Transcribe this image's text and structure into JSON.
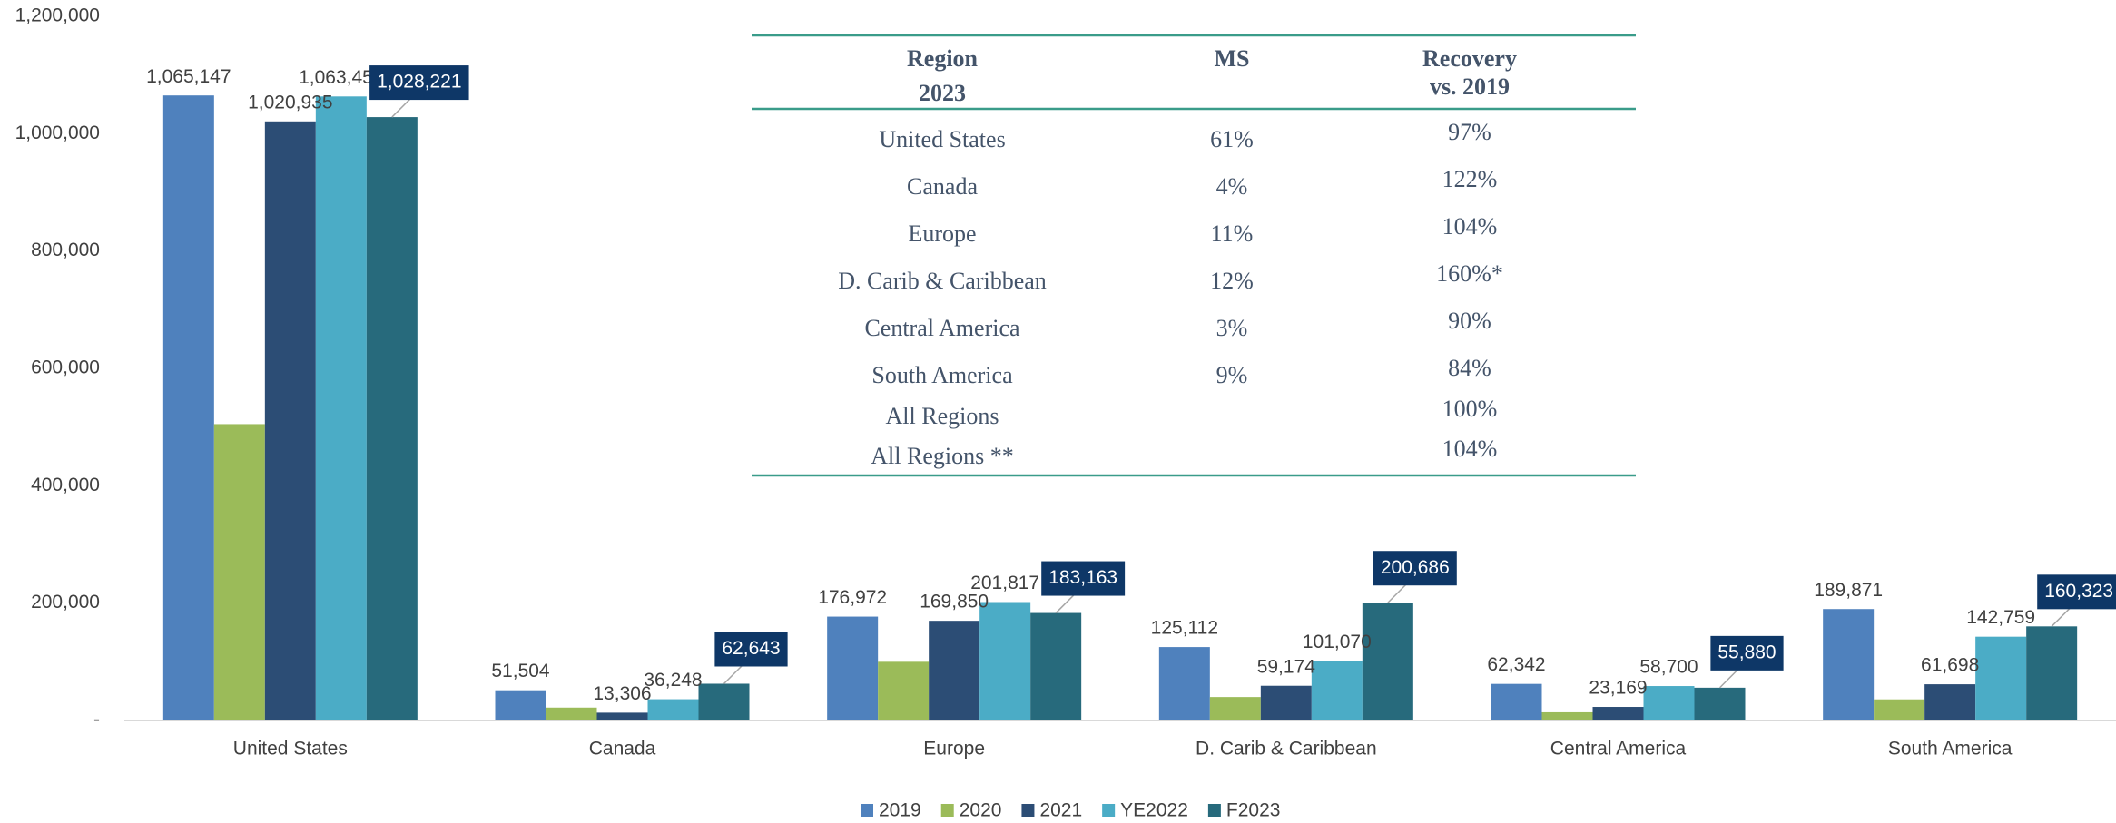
{
  "chart_data": {
    "type": "bar",
    "categories": [
      "United States",
      "Canada",
      "Europe",
      "D. Carib & Caribbean",
      "Central America",
      "South America"
    ],
    "series": [
      {
        "name": "2019",
        "color": "#4f81bd",
        "values": [
          1065147,
          51504,
          176972,
          125112,
          62342,
          189871
        ],
        "value_labels": [
          "1,065,147",
          "51,504",
          "176,972",
          "125,112",
          "62,342",
          "189,871"
        ]
      },
      {
        "name": "2020",
        "color": "#9bbb59",
        "values": [
          505000,
          22000,
          100000,
          40000,
          14000,
          36000
        ]
      },
      {
        "name": "2021",
        "color": "#2c4d75",
        "values": [
          1020935,
          13306,
          169850,
          59174,
          23169,
          61698
        ],
        "value_labels": [
          "1,020,935",
          "13,306",
          "169,850",
          "59,174",
          "23,169",
          "61,698"
        ]
      },
      {
        "name": "YE2022",
        "color": "#4bacc6",
        "values": [
          1063451,
          36248,
          201817,
          101070,
          58700,
          142759
        ],
        "value_labels": [
          "1,063,451",
          "36,248",
          "201,817",
          "101,070",
          "58,700",
          "142,759"
        ]
      },
      {
        "name": "F2023",
        "color": "#276a7c",
        "values": [
          1028221,
          62643,
          183163,
          200686,
          55880,
          160323
        ],
        "value_labels": [
          "1,028,221",
          "62,643",
          "183,163",
          "200,686",
          "55,880",
          "160,323"
        ]
      }
    ],
    "ylim": [
      0,
      1200000
    ],
    "yticks": [
      {
        "value": 0,
        "label": "-"
      },
      {
        "value": 200000,
        "label": "200,000"
      },
      {
        "value": 400000,
        "label": "400,000"
      },
      {
        "value": 600000,
        "label": "600,000"
      },
      {
        "value": 800000,
        "label": "800,000"
      },
      {
        "value": 1000000,
        "label": "1,000,000"
      },
      {
        "value": 1200000,
        "label": "1,200,000"
      }
    ],
    "legend": "bottom",
    "table": {
      "header": {
        "region": [
          "Region",
          "2023"
        ],
        "ms": "MS",
        "recovery": [
          "Recovery",
          "vs. 2019"
        ]
      },
      "rows": [
        {
          "region": "United States",
          "ms": "61%",
          "recovery": "97%"
        },
        {
          "region": "Canada",
          "ms": "4%",
          "recovery": "122%"
        },
        {
          "region": "Europe",
          "ms": "11%",
          "recovery": "104%"
        },
        {
          "region": "D. Carib & Caribbean",
          "ms": "12%",
          "recovery": "160%*"
        },
        {
          "region": "Central America",
          "ms": "3%",
          "recovery": "90%"
        },
        {
          "region": "South America",
          "ms": "9%",
          "recovery": "84%"
        },
        {
          "region": "All Regions",
          "recovery": "100%"
        },
        {
          "region": "All Regions **",
          "recovery": "104%"
        }
      ]
    }
  }
}
